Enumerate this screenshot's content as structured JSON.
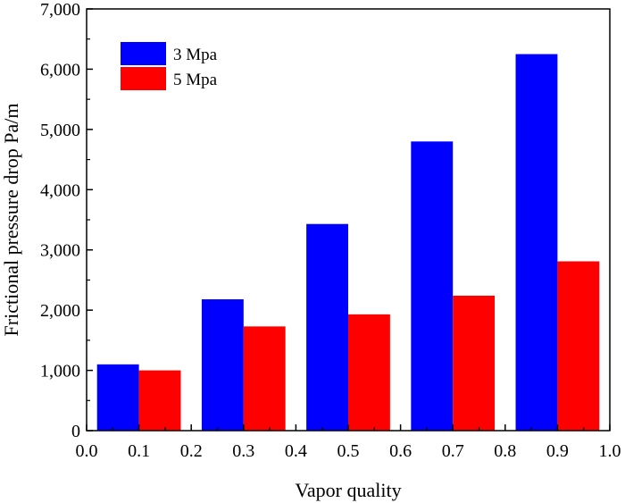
{
  "chart_data": {
    "type": "bar",
    "title": "",
    "xlabel": "Vapor quality",
    "ylabel": "Frictional pressure drop  Pa/m",
    "xlim": [
      0.0,
      1.0
    ],
    "ylim": [
      0,
      7000
    ],
    "x_ticks": [
      "0.0",
      "0.1",
      "0.2",
      "0.3",
      "0.4",
      "0.5",
      "0.6",
      "0.7",
      "0.8",
      "0.9",
      "1.0"
    ],
    "y_ticks": [
      "0",
      "1,000",
      "2,000",
      "3,000",
      "4,000",
      "5,000",
      "6,000",
      "7,000"
    ],
    "categories": [
      0.1,
      0.3,
      0.5,
      0.7,
      0.9
    ],
    "bar_width": 0.08,
    "series": [
      {
        "name": "3 Mpa",
        "color": "#0000ff",
        "values": [
          1100,
          2180,
          3430,
          4800,
          6250
        ]
      },
      {
        "name": "5 Mpa",
        "color": "#ff0000",
        "values": [
          1000,
          1730,
          1930,
          2240,
          2810
        ]
      }
    ],
    "grid": false,
    "legend_position": "top-left"
  }
}
